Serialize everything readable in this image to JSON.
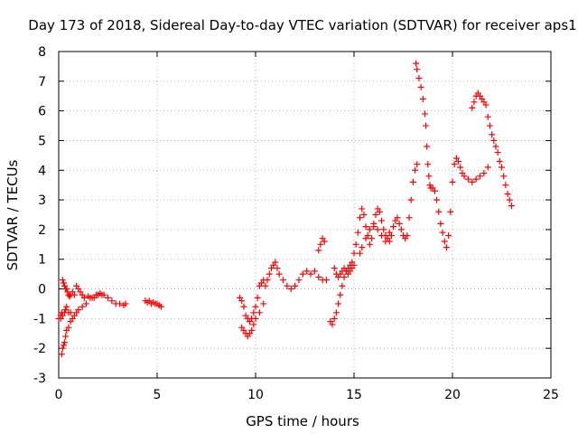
{
  "chart_data": {
    "type": "scatter",
    "title": "Day 173 of 2018, Sidereal Day-to-day VTEC variation (SDTVAR) for receiver aps1",
    "xlabel": "GPS time / hours",
    "ylabel": "SDTVAR / TECUs",
    "xlim": [
      0,
      25
    ],
    "ylim": [
      -3,
      8
    ],
    "grid": true,
    "marker": "plus",
    "color": "#ff0000",
    "xticks": [
      "0",
      "5",
      "10",
      "15",
      "20",
      "25"
    ],
    "yticks": [
      "-3",
      "-2",
      "-1",
      "0",
      "1",
      "2",
      "3",
      "4",
      "5",
      "6",
      "7",
      "8"
    ],
    "series": [
      {
        "name": "aps1",
        "x": [
          0.0,
          0.1,
          0.15,
          0.2,
          0.25,
          0.3,
          0.35,
          0.4,
          0.45,
          0.5,
          0.55,
          0.6,
          0.7,
          0.8,
          0.9,
          1.0,
          1.1,
          1.2,
          1.3,
          1.5,
          1.7,
          1.9,
          2.1,
          2.3,
          2.5,
          2.7,
          2.9,
          3.1,
          3.3,
          3.4,
          0.15,
          0.2,
          0.25,
          0.3,
          0.35,
          0.4,
          0.5,
          0.6,
          0.7,
          0.8,
          0.9,
          1.0,
          1.2,
          1.4,
          1.6,
          1.8,
          2.0,
          2.2,
          0.1,
          0.2,
          0.3,
          0.35,
          0.4,
          0.5,
          0.6,
          4.4,
          4.5,
          4.6,
          4.7,
          4.8,
          4.9,
          5.0,
          5.1,
          5.2,
          9.2,
          9.3,
          9.4,
          9.5,
          9.6,
          9.7,
          9.8,
          9.9,
          10.0,
          10.1,
          10.2,
          10.3,
          10.4,
          10.5,
          10.6,
          10.7,
          10.8,
          10.9,
          11.0,
          11.1,
          11.2,
          11.4,
          11.6,
          11.8,
          12.0,
          12.2,
          12.4,
          12.6,
          12.8,
          13.0,
          13.2,
          13.4,
          13.6,
          9.3,
          9.4,
          9.5,
          9.6,
          9.7,
          9.8,
          9.9,
          10.0,
          10.2,
          10.4,
          13.2,
          13.3,
          13.4,
          13.5,
          13.8,
          13.9,
          14.0,
          14.1,
          14.2,
          14.3,
          14.4,
          14.5,
          14.6,
          14.7,
          14.8,
          14.9,
          15.0,
          14.0,
          14.1,
          14.2,
          14.3,
          14.4,
          14.5,
          14.6,
          14.7,
          14.8,
          14.9,
          15.0,
          15.1,
          15.2,
          15.3,
          15.4,
          15.5,
          15.6,
          15.7,
          15.8,
          15.9,
          16.0,
          16.1,
          16.2,
          16.3,
          16.4,
          16.5,
          16.6,
          16.7,
          16.8,
          16.9,
          17.0,
          17.1,
          17.2,
          17.3,
          17.4,
          17.5,
          17.6,
          17.7,
          15.3,
          15.4,
          15.6,
          15.8,
          16.0,
          16.2,
          16.4,
          16.6,
          16.8,
          17.8,
          17.9,
          18.0,
          18.1,
          18.2,
          18.15,
          18.2,
          18.3,
          18.4,
          18.5,
          18.6,
          18.65,
          18.7,
          18.75,
          18.8,
          18.85,
          18.9,
          19.0,
          19.1,
          19.2,
          19.3,
          19.4,
          19.5,
          19.6,
          19.7,
          19.8,
          19.9,
          20.0,
          20.1,
          20.2,
          20.3,
          20.4,
          20.5,
          20.6,
          20.8,
          21.0,
          21.2,
          21.4,
          21.6,
          21.8,
          21.0,
          21.1,
          21.2,
          21.3,
          21.4,
          21.5,
          21.6,
          21.7,
          21.8,
          21.9,
          22.0,
          22.1,
          22.2,
          22.3,
          22.4,
          22.5,
          22.6,
          22.7,
          22.8,
          22.9,
          23.0
        ],
        "y": [
          -1.0,
          -0.9,
          -0.8,
          0.3,
          0.2,
          0.1,
          0.0,
          0.0,
          -0.1,
          -0.2,
          -0.25,
          -0.2,
          -0.1,
          -0.2,
          0.1,
          0.0,
          -0.1,
          -0.2,
          -0.3,
          -0.25,
          -0.3,
          -0.2,
          -0.15,
          -0.2,
          -0.3,
          -0.4,
          -0.5,
          -0.5,
          -0.55,
          -0.5,
          -2.2,
          -2.0,
          -1.9,
          -1.8,
          -1.6,
          -1.4,
          -1.3,
          -1.1,
          -1.0,
          -0.9,
          -0.8,
          -0.7,
          -0.6,
          -0.5,
          -0.3,
          -0.3,
          -0.2,
          -0.2,
          -1.0,
          -0.9,
          -0.8,
          -0.7,
          -0.6,
          -0.8,
          -0.8,
          -0.4,
          -0.45,
          -0.4,
          -0.5,
          -0.45,
          -0.5,
          -0.5,
          -0.55,
          -0.6,
          -0.3,
          -0.4,
          -0.6,
          -0.9,
          -1.0,
          -1.1,
          -1.0,
          -0.8,
          -0.6,
          -0.3,
          0.1,
          0.2,
          0.3,
          0.1,
          0.3,
          0.5,
          0.7,
          0.8,
          0.9,
          0.7,
          0.5,
          0.3,
          0.1,
          0.0,
          0.1,
          0.3,
          0.5,
          0.6,
          0.5,
          0.6,
          0.4,
          0.3,
          0.3,
          -1.3,
          -1.4,
          -1.5,
          -1.6,
          -1.5,
          -1.4,
          -1.2,
          -1.0,
          -0.8,
          -0.5,
          1.3,
          1.5,
          1.7,
          1.6,
          -1.1,
          -1.2,
          -1.0,
          -0.8,
          -0.5,
          -0.2,
          0.1,
          0.4,
          0.6,
          0.7,
          0.8,
          0.9,
          1.2,
          0.7,
          0.5,
          0.4,
          0.5,
          0.6,
          0.7,
          0.6,
          0.5,
          0.6,
          0.7,
          0.8,
          1.5,
          1.9,
          2.4,
          2.7,
          2.5,
          2.1,
          1.8,
          1.5,
          1.7,
          2.1,
          2.5,
          2.7,
          2.6,
          2.3,
          2.0,
          1.8,
          1.7,
          1.6,
          1.8,
          2.1,
          2.3,
          2.4,
          2.2,
          2.0,
          1.8,
          1.7,
          1.8,
          1.2,
          1.4,
          1.7,
          2.0,
          2.2,
          2.0,
          1.8,
          1.6,
          1.9,
          2.4,
          3.0,
          3.6,
          4.0,
          4.2,
          7.6,
          7.4,
          7.1,
          6.8,
          6.4,
          5.9,
          5.5,
          4.8,
          4.2,
          3.8,
          3.5,
          3.4,
          3.4,
          3.3,
          3.0,
          2.6,
          2.2,
          1.9,
          1.6,
          1.4,
          1.8,
          2.6,
          3.6,
          4.2,
          4.4,
          4.3,
          4.1,
          3.9,
          3.8,
          3.7,
          3.6,
          3.7,
          3.8,
          3.9,
          4.1,
          6.1,
          6.3,
          6.5,
          6.6,
          6.5,
          6.4,
          6.3,
          6.2,
          5.8,
          5.5,
          5.2,
          5.0,
          4.8,
          4.6,
          4.3,
          4.1,
          3.8,
          3.5,
          3.2,
          3.0,
          2.8
        ]
      }
    ]
  }
}
